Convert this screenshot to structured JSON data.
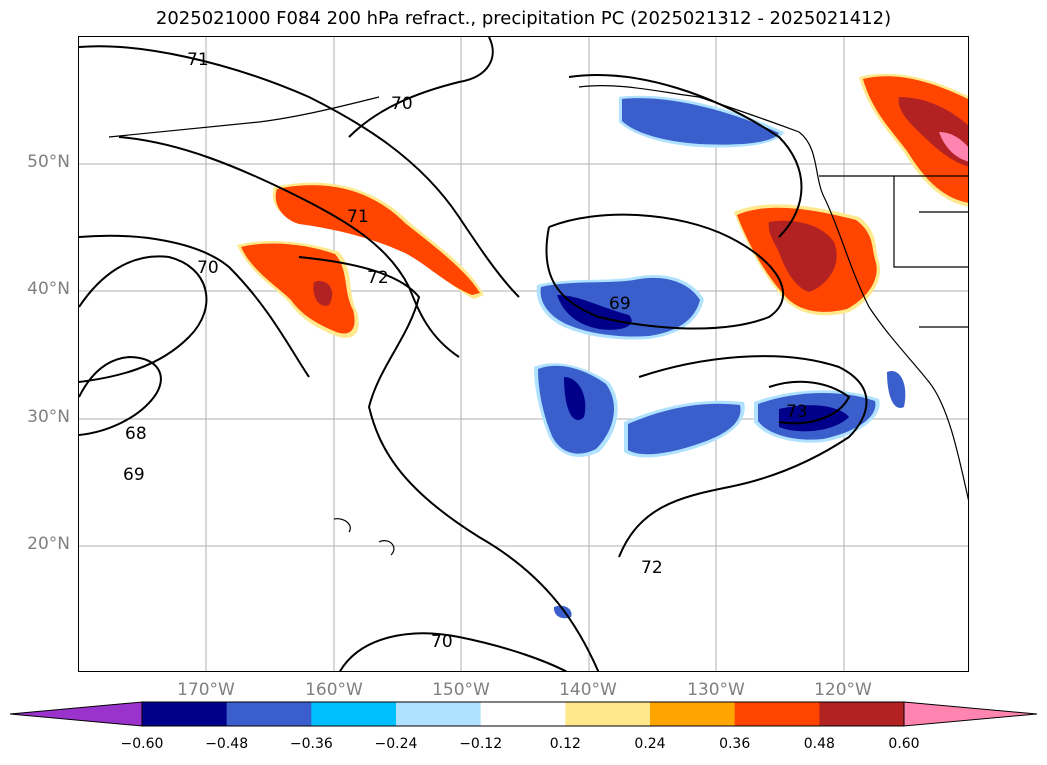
{
  "title": "2025021000 F084 200 hPa refract., precipitation PC (2025021312 - 2025021412)",
  "lat_labels": [
    "50°N",
    "40°N",
    "30°N",
    "20°N"
  ],
  "lon_labels": [
    "170°W",
    "160°W",
    "150°W",
    "140°W",
    "130°W",
    "120°W"
  ],
  "contour_labels": [
    "71",
    "70",
    "71",
    "72",
    "70",
    "69",
    "68",
    "69",
    "73",
    "72",
    "70"
  ],
  "colorbar": {
    "ticks": [
      "−0.60",
      "−0.48",
      "−0.36",
      "−0.24",
      "−0.12",
      "0.12",
      "0.24",
      "0.36",
      "0.48",
      "0.60"
    ],
    "colors": [
      "#9933cc",
      "#00008b",
      "#3a5fcd",
      "#00bfff",
      "#b0e2ff",
      "#ffffff",
      "#ffe98c",
      "#ffa500",
      "#ff4500",
      "#b22222",
      "#ff85b0"
    ]
  }
}
